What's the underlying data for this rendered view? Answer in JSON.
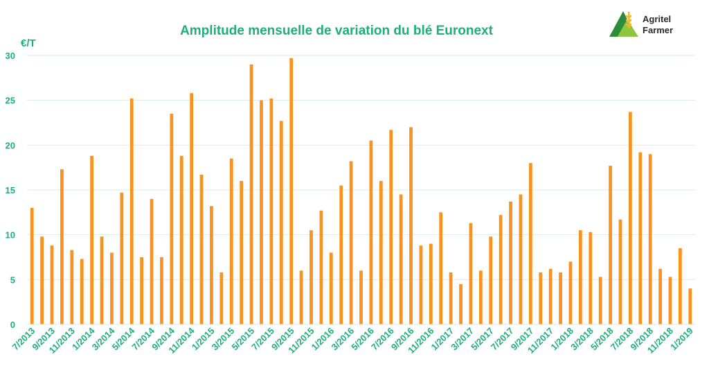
{
  "chart_data": {
    "type": "bar",
    "title": "Amplitude mensuelle de variation du blé Euronext",
    "ylabel": "€/T",
    "ylim": [
      0,
      30
    ],
    "yticks": [
      0,
      5,
      10,
      15,
      20,
      25,
      30
    ],
    "grid": true,
    "categories": [
      "7/2013",
      "8/2013",
      "9/2013",
      "10/2013",
      "11/2013",
      "12/2013",
      "1/2014",
      "2/2014",
      "3/2014",
      "4/2014",
      "5/2014",
      "6/2014",
      "7/2014",
      "8/2014",
      "9/2014",
      "10/2014",
      "11/2014",
      "12/2014",
      "1/2015",
      "2/2015",
      "3/2015",
      "4/2015",
      "5/2015",
      "6/2015",
      "7/2015",
      "8/2015",
      "9/2015",
      "10/2015",
      "11/2015",
      "12/2015",
      "1/2016",
      "2/2016",
      "3/2016",
      "4/2016",
      "5/2016",
      "6/2016",
      "7/2016",
      "8/2016",
      "9/2016",
      "10/2016",
      "11/2016",
      "12/2016",
      "1/2017",
      "2/2017",
      "3/2017",
      "4/2017",
      "5/2017",
      "6/2017",
      "7/2017",
      "8/2017",
      "9/2017",
      "10/2017",
      "11/2017",
      "12/2017",
      "1/2018",
      "2/2018",
      "3/2018",
      "4/2018",
      "5/2018",
      "6/2018",
      "7/2018",
      "8/2018",
      "9/2018",
      "10/2018",
      "11/2018",
      "12/2018",
      "1/2019"
    ],
    "visible_tick_labels": [
      "7/2013",
      "9/2013",
      "11/2013",
      "1/2014",
      "3/2014",
      "5/2014",
      "7/2014",
      "9/2014",
      "11/2014",
      "1/2015",
      "3/2015",
      "5/2015",
      "7/2015",
      "9/2015",
      "11/2015",
      "1/2016",
      "3/2016",
      "5/2016",
      "7/2016",
      "9/2016",
      "11/2016",
      "1/2017",
      "3/2017",
      "5/2017",
      "7/2017",
      "9/2017",
      "11/2017",
      "1/2018",
      "3/2018",
      "5/2018",
      "7/2018",
      "9/2018",
      "11/2018",
      "1/2019"
    ],
    "values": [
      13.0,
      9.8,
      8.8,
      17.3,
      8.3,
      7.3,
      18.8,
      9.8,
      8.0,
      14.7,
      25.2,
      7.5,
      14.0,
      7.5,
      23.5,
      18.8,
      25.8,
      16.7,
      13.2,
      5.8,
      18.5,
      16.0,
      29.0,
      25.0,
      25.2,
      22.7,
      29.7,
      6.0,
      10.5,
      12.7,
      8.0,
      15.5,
      18.2,
      6.0,
      20.5,
      16.0,
      21.7,
      14.5,
      22.0,
      8.8,
      9.0,
      12.5,
      5.8,
      4.5,
      11.3,
      6.0,
      9.8,
      12.2,
      13.7,
      14.5,
      18.0,
      5.8,
      6.2,
      5.8,
      7.0,
      10.5,
      10.3,
      5.3,
      17.7,
      11.7,
      23.7,
      19.2,
      19.0,
      6.2,
      5.3,
      8.5,
      4.0
    ]
  },
  "colors": {
    "bar": "#F7931E",
    "title": "#1FAE7A",
    "axis_text": "#1FAE7A",
    "grid": "#D7EEE6",
    "logo_green_dark": "#2E8B3C",
    "logo_green_light": "#8CC63F",
    "logo_wheat": "#F5B81E",
    "logo_text": "#2B2B2B"
  },
  "logo": {
    "icon": "wheat-logo-icon",
    "line1": "Agritel",
    "line2": "Farmer"
  }
}
